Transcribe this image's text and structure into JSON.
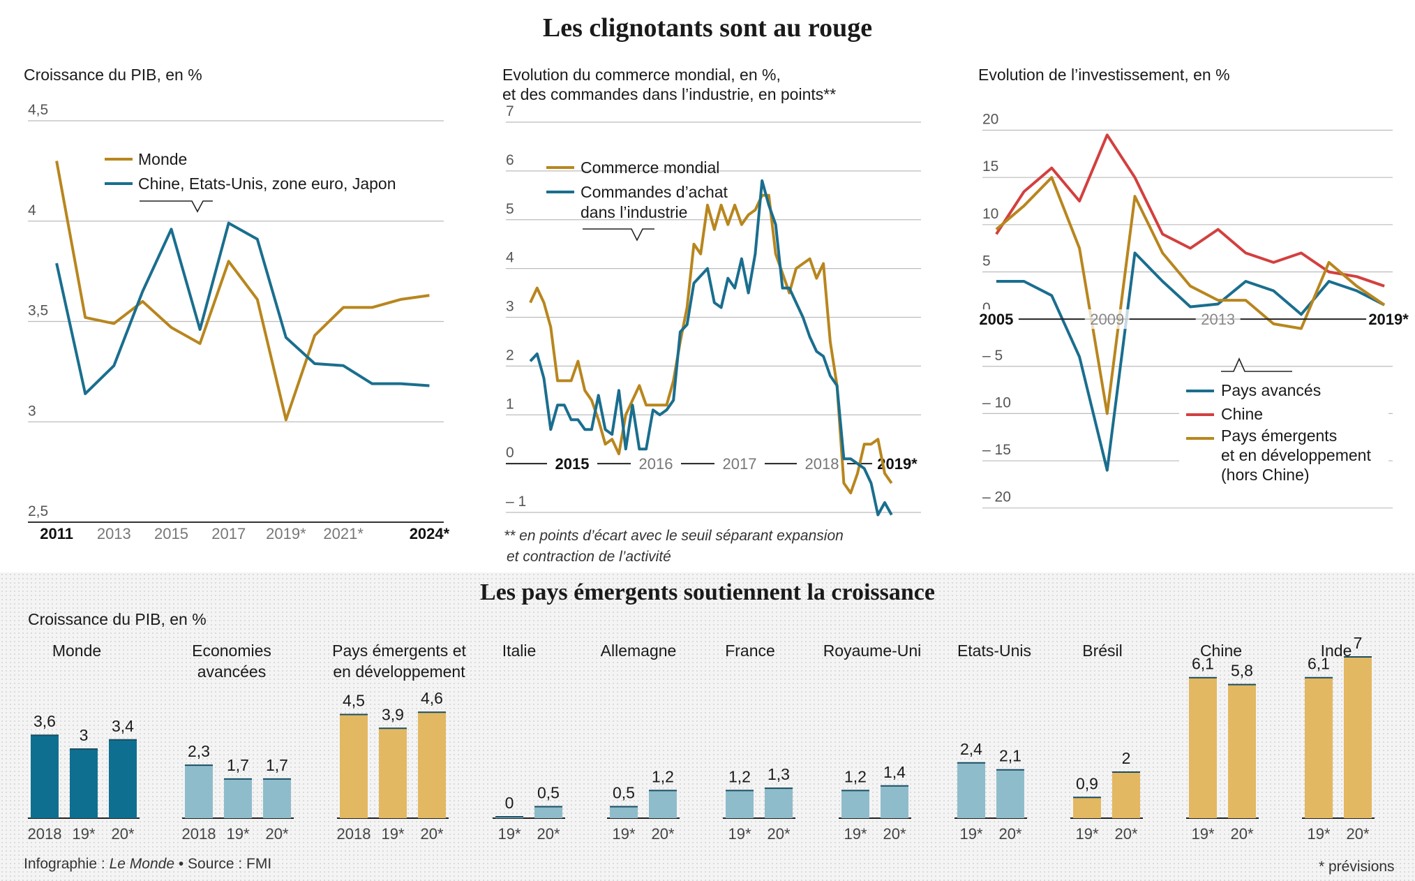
{
  "header": {
    "title": "Les clignotants sont au rouge"
  },
  "chart_data": [
    {
      "type": "line",
      "title": "Croissance du PIB, en %",
      "ylim": [
        2.5,
        4.5
      ],
      "yticks": [
        "4,5",
        "4",
        "3,5",
        "3",
        "2,5"
      ],
      "ytick_values": [
        4.5,
        4,
        3.5,
        3,
        2.5
      ],
      "xticks": [
        "2011",
        "2013",
        "2015",
        "2017",
        "2019*",
        "2021*",
        "2024*"
      ],
      "xtick_values": [
        2011,
        2013,
        2015,
        2017,
        2019,
        2021,
        2024
      ],
      "xtick_bold": [
        true,
        false,
        false,
        false,
        false,
        false,
        true
      ],
      "xlim": [
        2010,
        2024.5
      ],
      "series": [
        {
          "name": "Monde",
          "color": "#b8861e",
          "x": [
            2011,
            2012,
            2013,
            2014,
            2015,
            2016,
            2017,
            2018,
            2019,
            2020,
            2021,
            2022,
            2023,
            2024
          ],
          "y": [
            4.3,
            3.52,
            3.49,
            3.6,
            3.47,
            3.39,
            3.8,
            3.61,
            3.01,
            3.43,
            3.57,
            3.57,
            3.61,
            3.63
          ]
        },
        {
          "name": "Chine, Etats-Unis, zone euro, Japon",
          "color": "#1a6e8e",
          "x": [
            2011,
            2012,
            2013,
            2014,
            2015,
            2016,
            2017,
            2018,
            2019,
            2020,
            2021,
            2022,
            2023,
            2024
          ],
          "y": [
            3.79,
            3.14,
            3.28,
            3.65,
            3.96,
            3.46,
            3.99,
            3.91,
            3.42,
            3.29,
            3.28,
            3.19,
            3.19,
            3.18
          ]
        }
      ]
    },
    {
      "type": "line",
      "title": "Evolution du commerce mondial, en %,",
      "title_line2": "et des commandes dans l’industrie, en points**",
      "note": "** en points d’écart avec le seuil séparant expansion",
      "note_line2": "et contraction de l’activité",
      "ylim": [
        -1.2,
        7
      ],
      "yticks": [
        "7",
        "6",
        "5",
        "4",
        "3",
        "2",
        "1",
        "0",
        "– 1"
      ],
      "ytick_values": [
        7,
        6,
        5,
        4,
        3,
        2,
        1,
        0,
        -1
      ],
      "xticks": [
        "2015",
        "2016",
        "2017",
        "2018",
        "2019*"
      ],
      "xtick_bold": [
        true,
        false,
        false,
        false,
        true
      ],
      "xlim": [
        0,
        56.5
      ],
      "series": [
        {
          "name": "Commerce mondial",
          "color": "#b8861e",
          "y": [
            3.3,
            3.6,
            3.3,
            2.8,
            1.7,
            1.7,
            1.7,
            2.1,
            1.5,
            1.3,
            0.9,
            0.4,
            0.5,
            0.2,
            1.0,
            1.3,
            1.6,
            1.2,
            1.2,
            1.2,
            1.2,
            1.7,
            2.5,
            3.2,
            4.5,
            4.3,
            5.3,
            4.8,
            5.3,
            4.9,
            5.3,
            4.9,
            5.1,
            5.2,
            5.5,
            5.5,
            4.3,
            3.9,
            3.5,
            4.0,
            4.1,
            4.2,
            3.8,
            4.1,
            2.5,
            1.6,
            -0.4,
            -0.6,
            -0.2,
            0.4,
            0.4,
            0.5,
            -0.2,
            -0.4
          ]
        },
        {
          "name": "Commandes d’achat dans l’industrie",
          "color": "#1a6e8e",
          "y": [
            2.1,
            2.25,
            1.75,
            0.7,
            1.2,
            1.2,
            0.9,
            0.9,
            0.7,
            0.7,
            1.4,
            0.7,
            0.6,
            1.5,
            0.3,
            1.2,
            0.3,
            0.3,
            1.1,
            1.0,
            1.1,
            1.3,
            2.7,
            2.85,
            3.7,
            3.85,
            4.0,
            3.3,
            3.2,
            3.8,
            3.6,
            4.2,
            3.5,
            4.3,
            5.8,
            5.3,
            4.9,
            3.6,
            3.6,
            3.3,
            3.0,
            2.6,
            2.3,
            2.2,
            1.8,
            1.6,
            0.1,
            0.1,
            0.0,
            -0.1,
            -0.4,
            -1.05,
            -0.8,
            -1.05
          ]
        }
      ]
    },
    {
      "type": "line",
      "title": "Evolution de l’investissement, en %",
      "ylim": [
        -21.5,
        21
      ],
      "yticks": [
        "20",
        "15",
        "10",
        "5",
        "0",
        "– 5",
        "– 10",
        "– 15",
        "– 20"
      ],
      "ytick_values": [
        20,
        15,
        10,
        5,
        0,
        -5,
        -10,
        -15,
        -20
      ],
      "xticks": [
        "2005",
        "2009",
        "2013",
        "2019*"
      ],
      "xtick_values": [
        2005,
        2009,
        2013,
        2019
      ],
      "xtick_bold": [
        true,
        false,
        false,
        true
      ],
      "xlim": [
        2004.5,
        2019.3
      ],
      "series": [
        {
          "name": "Pays avancés",
          "color": "#1a6e8e",
          "x": [
            2005,
            2006,
            2007,
            2008,
            2009,
            2010,
            2011,
            2012,
            2013,
            2014,
            2015,
            2016,
            2017,
            2018,
            2019
          ],
          "y": [
            4,
            4,
            2.5,
            -4,
            -16,
            7,
            4,
            1.3,
            1.6,
            4,
            3,
            0.5,
            4,
            3,
            1.5
          ]
        },
        {
          "name": "Chine",
          "color": "#d2403f",
          "x": [
            2005,
            2006,
            2007,
            2008,
            2009,
            2010,
            2011,
            2012,
            2013,
            2014,
            2015,
            2016,
            2017,
            2018,
            2019
          ],
          "y": [
            9,
            13.5,
            16,
            12.5,
            19.5,
            15,
            9,
            7.5,
            9.5,
            7,
            6,
            7,
            5,
            4.5,
            3.5
          ]
        },
        {
          "name": "Pays émergents et en développement (hors Chine)",
          "color": "#b8861e",
          "x": [
            2005,
            2006,
            2007,
            2008,
            2009,
            2010,
            2011,
            2012,
            2013,
            2014,
            2015,
            2016,
            2017,
            2018,
            2019
          ],
          "y": [
            9.5,
            12,
            15,
            7.5,
            -10,
            13,
            7,
            3.5,
            2,
            2,
            -0.5,
            -1,
            6,
            3.5,
            1.5
          ]
        }
      ]
    },
    {
      "type": "bar",
      "title": "Les pays émergents soutiennent la croissance",
      "subtitle": "Croissance du PIB, en %",
      "groups": [
        {
          "name": "Monde",
          "color": "#0f6f90",
          "categories": [
            "2018",
            "19*",
            "20*"
          ],
          "values": [
            3.6,
            3,
            3.4
          ],
          "labels": [
            "3,6",
            "3",
            "3,4"
          ]
        },
        {
          "name": "Economies\navancées",
          "color": "#8fbccb",
          "categories": [
            "2018",
            "19*",
            "20*"
          ],
          "values": [
            2.3,
            1.7,
            1.7
          ],
          "labels": [
            "2,3",
            "1,7",
            "1,7"
          ]
        },
        {
          "name": "Pays émergents et\nen développement",
          "color": "#e3b862",
          "categories": [
            "2018",
            "19*",
            "20*"
          ],
          "values": [
            4.5,
            3.9,
            4.6
          ],
          "labels": [
            "4,5",
            "3,9",
            "4,6"
          ]
        },
        {
          "name": "Italie",
          "color": "#8fbccb",
          "categories": [
            "19*",
            "20*"
          ],
          "values": [
            0,
            0.5
          ],
          "labels": [
            "0",
            "0,5"
          ]
        },
        {
          "name": "Allemagne",
          "color": "#8fbccb",
          "categories": [
            "19*",
            "20*"
          ],
          "values": [
            0.5,
            1.2
          ],
          "labels": [
            "0,5",
            "1,2"
          ]
        },
        {
          "name": "France",
          "color": "#8fbccb",
          "categories": [
            "19*",
            "20*"
          ],
          "values": [
            1.2,
            1.3
          ],
          "labels": [
            "1,2",
            "1,3"
          ]
        },
        {
          "name": "Royaume-Uni",
          "color": "#8fbccb",
          "categories": [
            "19*",
            "20*"
          ],
          "values": [
            1.2,
            1.4
          ],
          "labels": [
            "1,2",
            "1,4"
          ]
        },
        {
          "name": "Etats-Unis",
          "color": "#8fbccb",
          "categories": [
            "19*",
            "20*"
          ],
          "values": [
            2.4,
            2.1
          ],
          "labels": [
            "2,4",
            "2,1"
          ]
        },
        {
          "name": "Brésil",
          "color": "#e3b862",
          "categories": [
            "19*",
            "20*"
          ],
          "values": [
            0.9,
            2
          ],
          "labels": [
            "0,9",
            "2"
          ]
        },
        {
          "name": "Chine",
          "color": "#e3b862",
          "categories": [
            "19*",
            "20*"
          ],
          "values": [
            6.1,
            5.8
          ],
          "labels": [
            "6,1",
            "5,8"
          ]
        },
        {
          "name": "Inde",
          "color": "#e3b862",
          "categories": [
            "19*",
            "20*"
          ],
          "values": [
            6.1,
            7
          ],
          "labels": [
            "6,1",
            "7"
          ]
        }
      ]
    }
  ],
  "footer": {
    "prefix": "Infographie : ",
    "source_name": "Le Monde",
    "suffix": " • Source : FMI",
    "forecast_note": "* prévisions"
  }
}
